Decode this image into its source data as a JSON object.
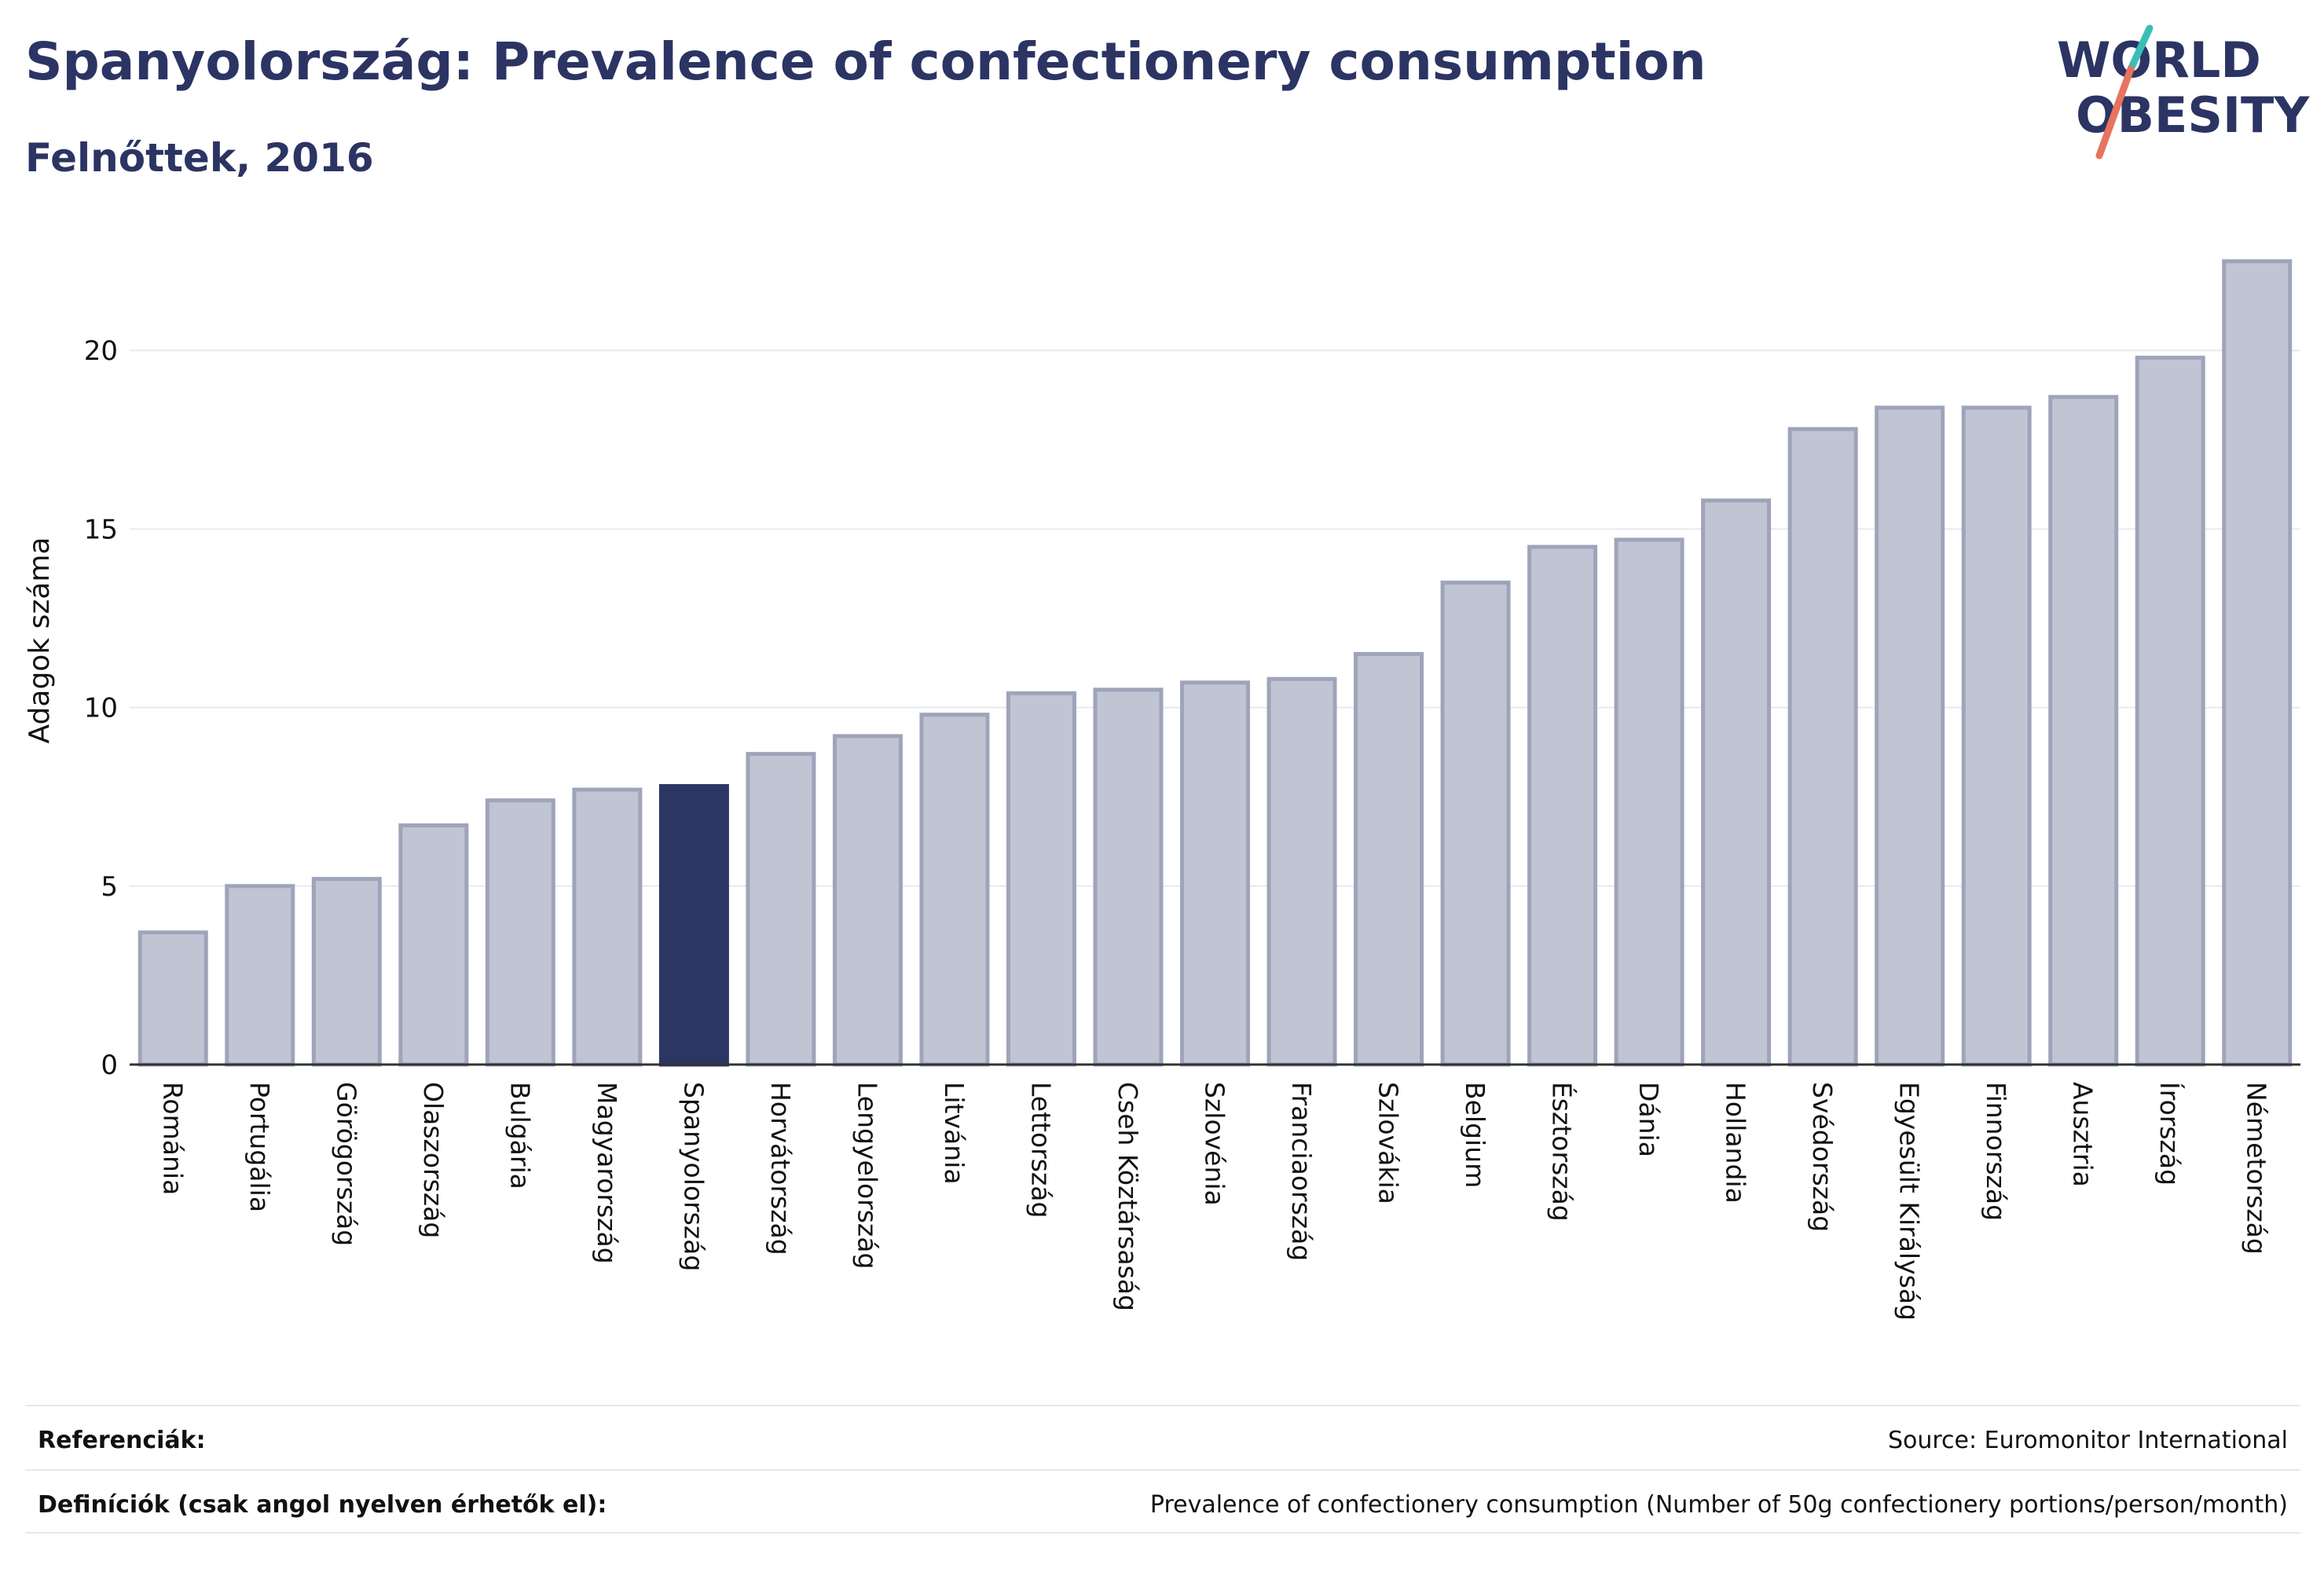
{
  "header": {
    "title": "Spanyolország: Prevalence of confectionery consumption",
    "subtitle": "Felnőttek, 2016"
  },
  "logo": {
    "line1": "WORLD",
    "line2": "OBESITY",
    "accent_teal": "#3bbdb7",
    "accent_coral": "#e8735f"
  },
  "colors": {
    "bar": "#c0c4d3",
    "bar_border": "#9ea4ba",
    "highlight": "#2b3663",
    "text": "#2b3463"
  },
  "chart_data": {
    "type": "bar",
    "ylabel": "Adagok száma",
    "ylim": [
      0,
      22.6
    ],
    "yticks": [
      0,
      5,
      10,
      15,
      20
    ],
    "grid": true,
    "highlight": "Spanyolország",
    "categories": [
      "Románia",
      "Portugália",
      "Görögország",
      "Olaszország",
      "Bulgária",
      "Magyarország",
      "Spanyolország",
      "Horvátország",
      "Lengyelország",
      "Litvánia",
      "Lettország",
      "Cseh Köztársaság",
      "Szlovénia",
      "Franciaország",
      "Szlovákia",
      "Belgium",
      "Észtország",
      "Dánia",
      "Hollandia",
      "Svédország",
      "Egyesült Királyság",
      "Finnország",
      "Ausztria",
      "Írország",
      "Németország"
    ],
    "values": [
      3.7,
      5.0,
      5.2,
      6.7,
      7.4,
      7.7,
      7.8,
      8.7,
      9.2,
      9.8,
      10.4,
      10.5,
      10.7,
      10.8,
      11.5,
      13.5,
      14.5,
      14.7,
      15.8,
      17.8,
      18.4,
      18.4,
      18.7,
      19.8,
      22.5
    ]
  },
  "footer": {
    "references_label": "Referenciák:",
    "references_value": "Source: Euromonitor International",
    "definitions_label": "Definíciók (csak angol nyelven érhetők el):",
    "definitions_value": "Prevalence of confectionery consumption (Number of 50g confectionery portions/person/month)"
  }
}
